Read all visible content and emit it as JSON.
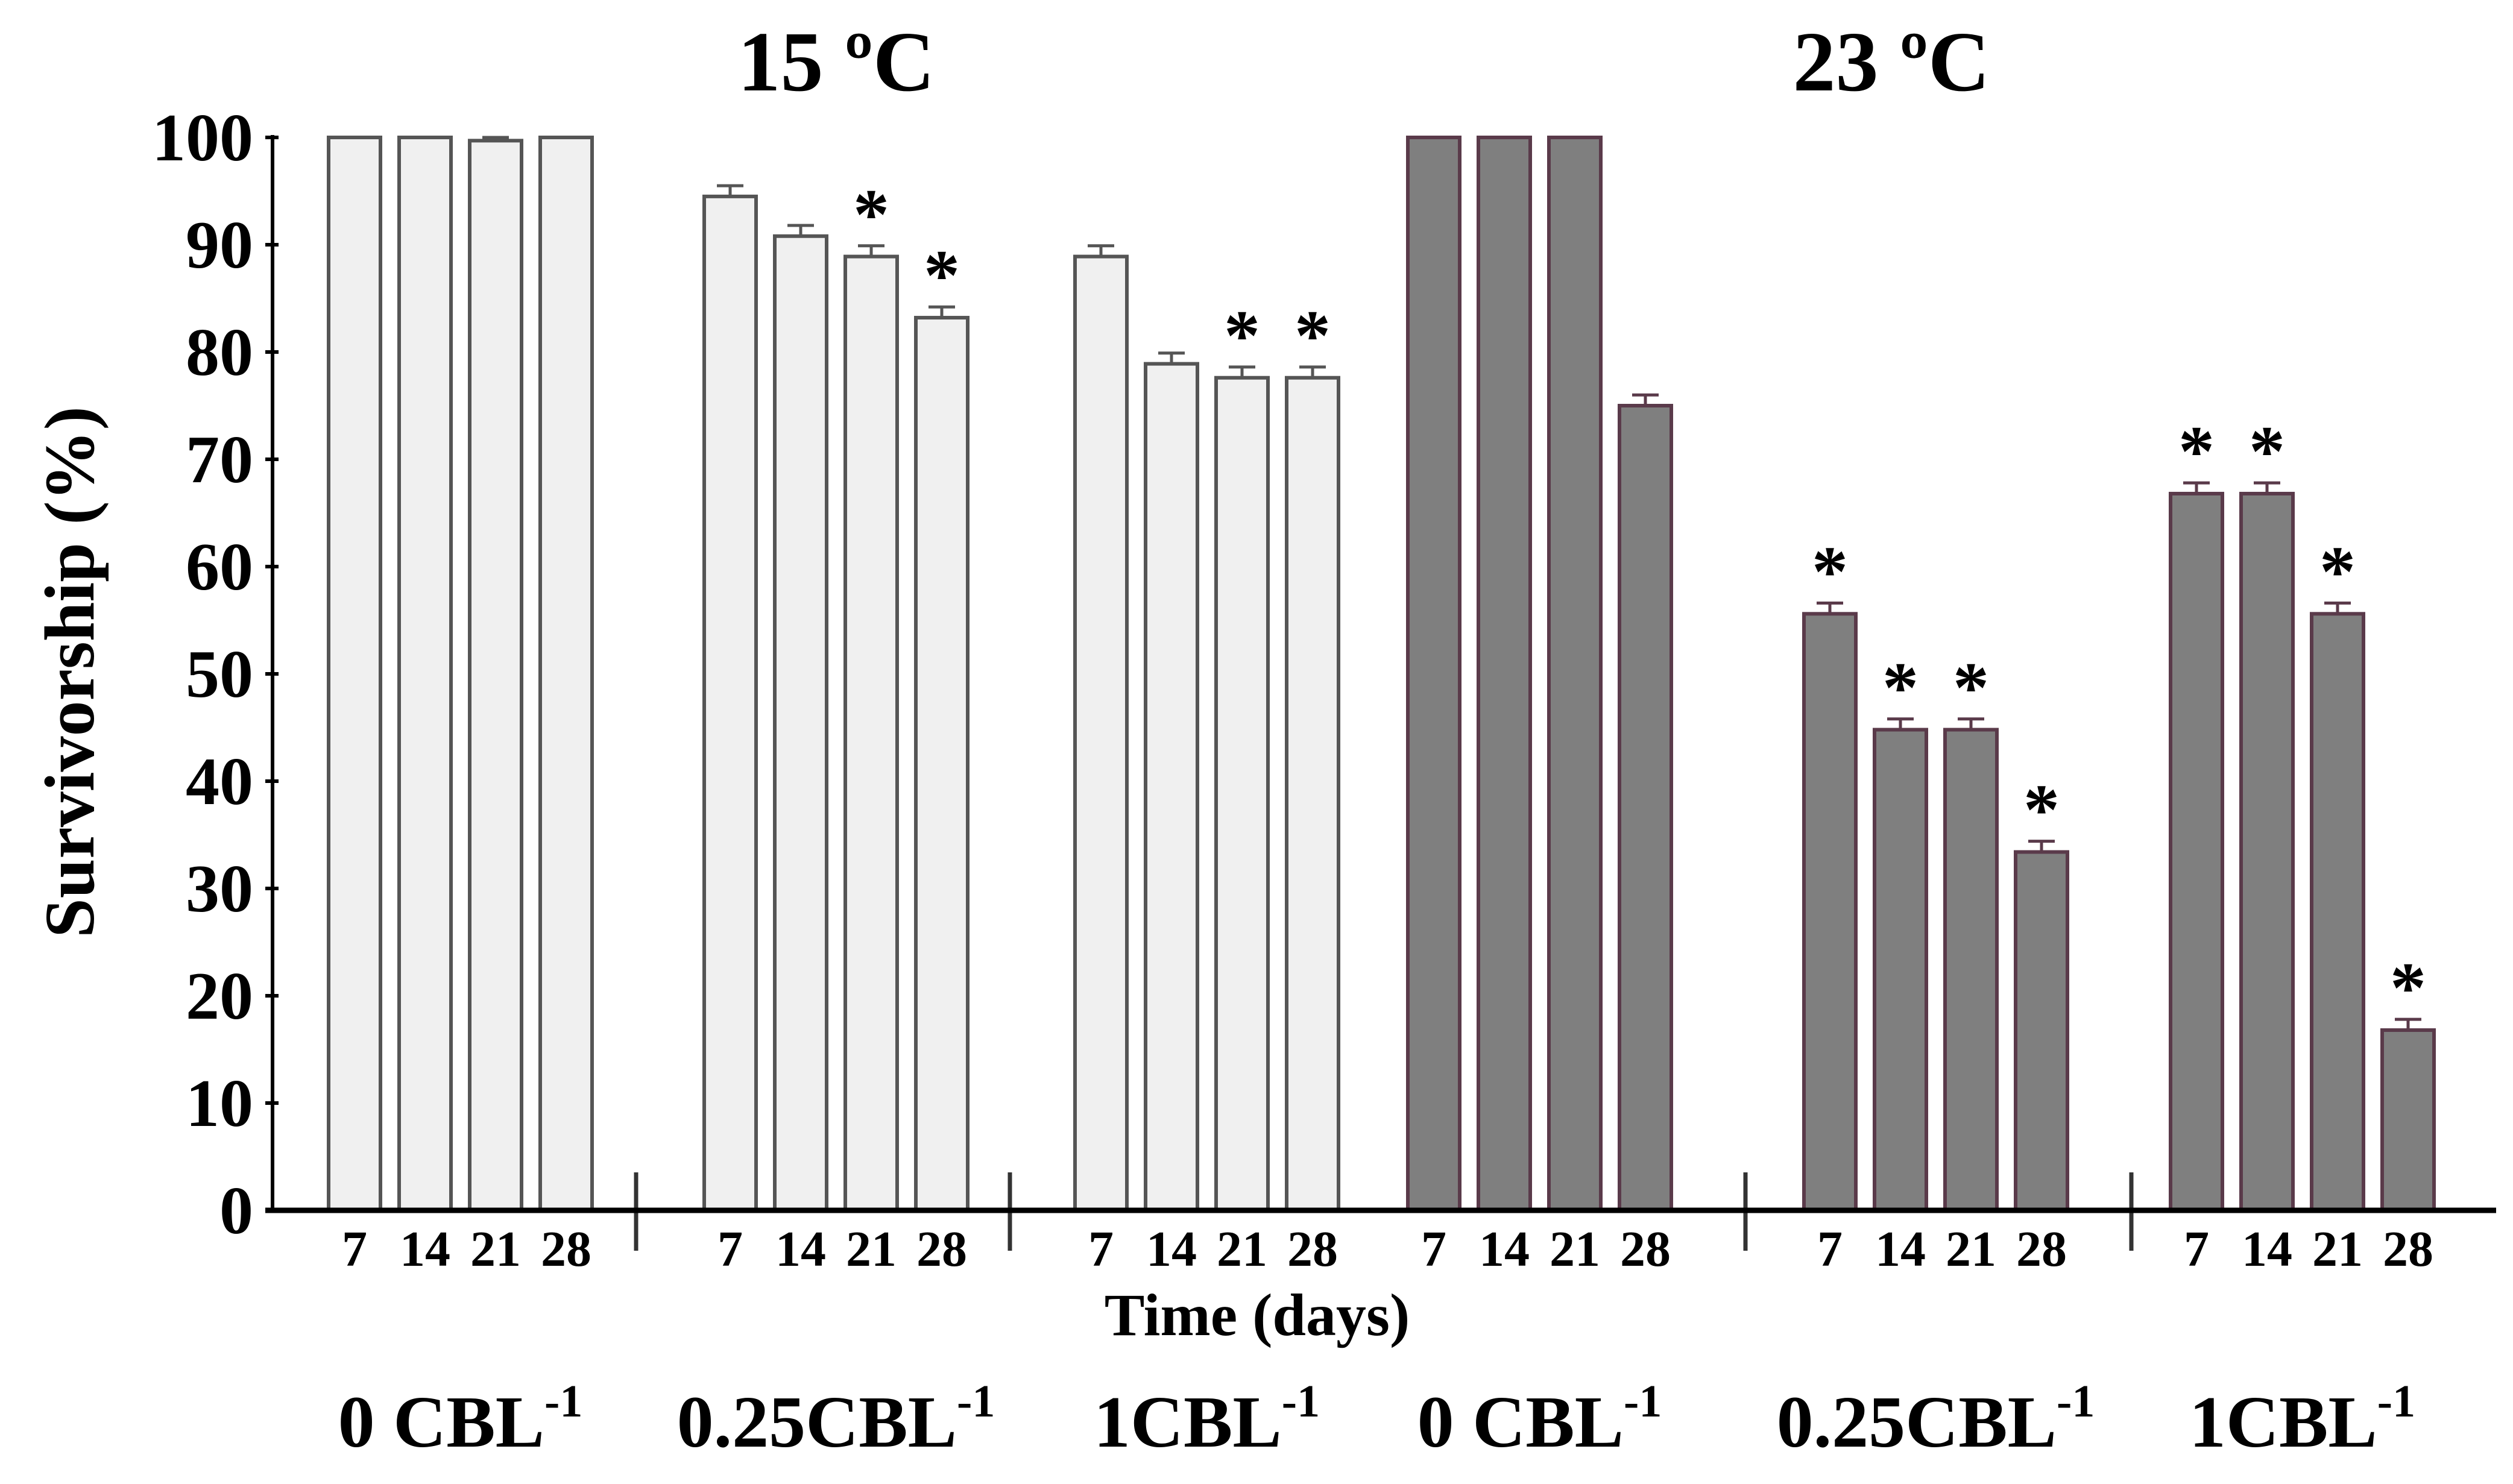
{
  "chart_data": {
    "type": "bar",
    "title_left": "15 ºC",
    "title_right": "23 ºC",
    "xlabel": "Time (days)",
    "ylabel": "Survivorship (%)",
    "ylim": [
      0,
      100
    ],
    "yticks": [
      "0",
      "10",
      "20",
      "30",
      "40",
      "50",
      "60",
      "70",
      "80",
      "90",
      "100"
    ],
    "groups": [
      {
        "name": "0 CBL",
        "sup": "-1",
        "temperature": "15 ºC",
        "color": "#f0f0f0",
        "edge": "#555555",
        "days": [
          "7",
          "14",
          "21",
          "28"
        ],
        "values": [
          100,
          100,
          99.7,
          100
        ],
        "significant": [
          false,
          false,
          false,
          false
        ]
      },
      {
        "name": "0.25CBL",
        "sup": "-1",
        "temperature": "15 ºC",
        "color": "#f0f0f0",
        "edge": "#555555",
        "days": [
          "7",
          "14",
          "21",
          "28"
        ],
        "values": [
          94.5,
          90.8,
          88.9,
          83.2
        ],
        "significant": [
          false,
          false,
          true,
          true
        ]
      },
      {
        "name": "1CBL",
        "sup": "-1",
        "temperature": "15 ºC",
        "color": "#f0f0f0",
        "edge": "#555555",
        "days": [
          "7",
          "14",
          "21",
          "28"
        ],
        "values": [
          88.9,
          78.9,
          77.6,
          77.6
        ],
        "significant": [
          false,
          false,
          true,
          true
        ]
      },
      {
        "name": "0 CBL",
        "sup": "-1",
        "temperature": "23 ºC",
        "color": "#7f7f7f",
        "edge": "#5a3a4a",
        "days": [
          "7",
          "14",
          "21",
          "28"
        ],
        "values": [
          100,
          100,
          100,
          75
        ],
        "significant": [
          false,
          false,
          false,
          false
        ]
      },
      {
        "name": "0.25CBL",
        "sup": "-1",
        "temperature": "23 ºC",
        "color": "#7f7f7f",
        "edge": "#5a3a4a",
        "days": [
          "7",
          "14",
          "21",
          "28"
        ],
        "values": [
          55.6,
          44.8,
          44.8,
          33.4
        ],
        "significant": [
          true,
          true,
          true,
          true
        ]
      },
      {
        "name": "1CBL",
        "sup": "-1",
        "temperature": "23 ºC",
        "color": "#7f7f7f",
        "edge": "#5a3a4a",
        "days": [
          "7",
          "14",
          "21",
          "28"
        ],
        "values": [
          66.8,
          66.8,
          55.6,
          16.8
        ],
        "significant": [
          true,
          true,
          true,
          true
        ]
      }
    ],
    "error": 1,
    "significance_marker": "*"
  }
}
